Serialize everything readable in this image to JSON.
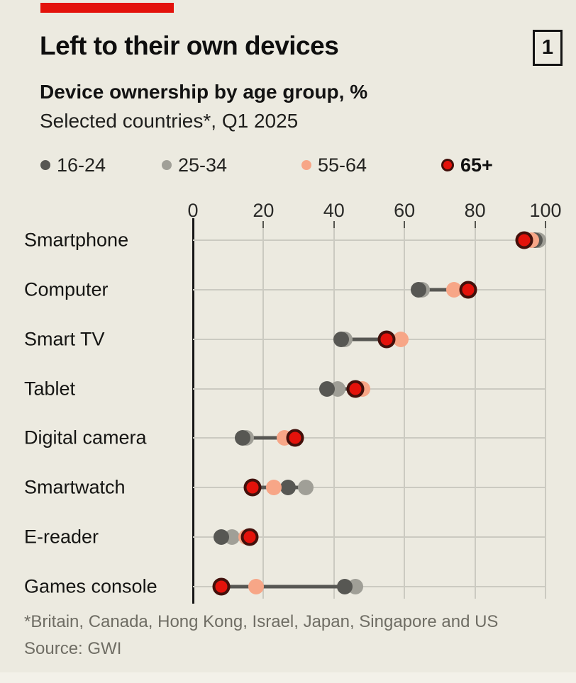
{
  "header": {
    "title": "Left to their own devices",
    "badge": "1",
    "subtitle_bold": "Device ownership by age group, %",
    "subtitle_regular": "Selected countries*, Q1 2025"
  },
  "colors": {
    "background": "#ECEAE0",
    "accent_red": "#E3120B",
    "dot_dark_gray": "#575753",
    "dot_light_gray": "#A09F97",
    "dot_salmon": "#F7A687",
    "dot_red": "#E3120B",
    "dot_red_ring": "#42100B",
    "gridline": "#CBCAC1",
    "axis_line": "#161616",
    "text_muted": "#6F6D64"
  },
  "legend": [
    {
      "label": "16-24",
      "color": "#575753",
      "ring": false,
      "bold": false
    },
    {
      "label": "25-34",
      "color": "#A09F97",
      "ring": false,
      "bold": false
    },
    {
      "label": "55-64",
      "color": "#F7A687",
      "ring": false,
      "bold": false
    },
    {
      "label": "65+",
      "color": "#E3120B",
      "ring": true,
      "bold": true
    }
  ],
  "chart_data": {
    "type": "scatter",
    "subtype": "horizontal-dot-plot-with-range-lines",
    "title": "Left to their own devices",
    "subtitle": "Device ownership by age group, % — Selected countries*, Q1 2025",
    "xlim": [
      0,
      100
    ],
    "x_ticks": [
      0,
      20,
      40,
      60,
      80,
      100
    ],
    "grid": true,
    "legend_position": "top",
    "categories": [
      "Smartphone",
      "Computer",
      "Smart TV",
      "Tablet",
      "Digital camera",
      "Smartwatch",
      "E-reader",
      "Games console"
    ],
    "series": [
      {
        "name": "16-24",
        "color": "#575753",
        "values": [
          97,
          64,
          42,
          38,
          14,
          27,
          8,
          43
        ]
      },
      {
        "name": "25-34",
        "color": "#A09F97",
        "values": [
          98,
          65,
          43,
          41,
          15,
          32,
          11,
          46
        ]
      },
      {
        "name": "55-64",
        "color": "#F7A687",
        "values": [
          96,
          74,
          59,
          48,
          26,
          23,
          15,
          18
        ]
      },
      {
        "name": "65+",
        "color": "#E3120B",
        "values": [
          94,
          78,
          55,
          46,
          29,
          17,
          16,
          8
        ]
      }
    ]
  },
  "footer": {
    "footnote": "*Britain, Canada, Hong Kong, Israel, Japan, Singapore and US",
    "source": "Source: GWI"
  }
}
